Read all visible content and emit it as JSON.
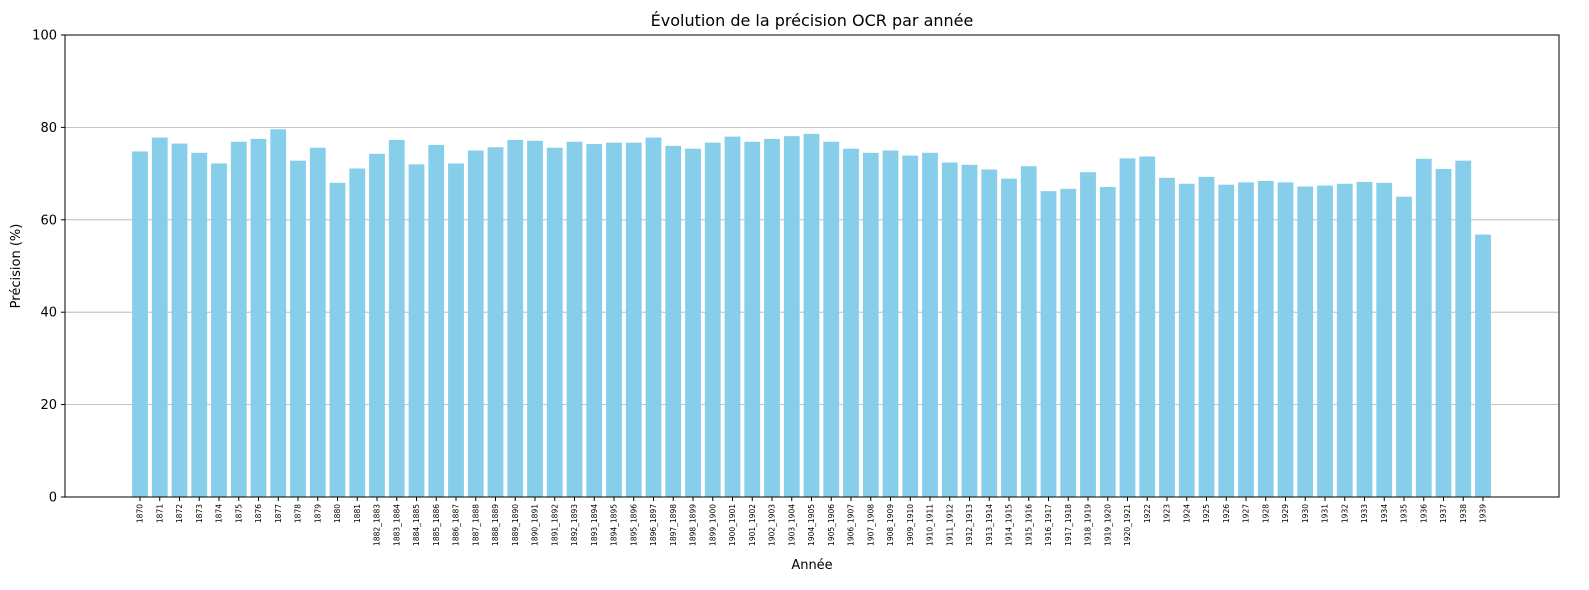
{
  "chart_data": {
    "type": "bar",
    "title": "Évolution de la précision OCR par année",
    "xlabel": "Année",
    "ylabel": "Précision (%)",
    "ylim": [
      0,
      100
    ],
    "yticks": [
      0,
      20,
      40,
      60,
      80,
      100
    ],
    "grid": "y",
    "bar_color": "#87CEEB",
    "grid_color": "#b0b0b0",
    "categories": [
      "1870",
      "1871",
      "1872",
      "1873",
      "1874",
      "1875",
      "1876",
      "1877",
      "1878",
      "1879",
      "1880",
      "1881",
      "1882_1883",
      "1883_1884",
      "1884_1885",
      "1885_1886",
      "1886_1887",
      "1887_1888",
      "1888_1889",
      "1889_1890",
      "1890_1891",
      "1891_1892",
      "1892_1893",
      "1893_1894",
      "1894_1895",
      "1895_1896",
      "1896_1897",
      "1897_1898",
      "1898_1899",
      "1899_1900",
      "1900_1901",
      "1901_1902",
      "1902_1903",
      "1903_1904",
      "1904_1905",
      "1905_1906",
      "1906_1907",
      "1907_1908",
      "1908_1909",
      "1909_1910",
      "1910_1911",
      "1911_1912",
      "1912_1913",
      "1913_1914",
      "1914_1915",
      "1915_1916",
      "1916_1917",
      "1917_1918",
      "1918_1919",
      "1919_1920",
      "1920_1921",
      "1922",
      "1923",
      "1924",
      "1925",
      "1926",
      "1927",
      "1928",
      "1929",
      "1930",
      "1931",
      "1932",
      "1933",
      "1934",
      "1935",
      "1936",
      "1937",
      "1938",
      "1939"
    ],
    "values": [
      74.8,
      77.8,
      76.5,
      74.5,
      72.2,
      76.9,
      77.5,
      79.6,
      72.8,
      75.6,
      68.0,
      71.1,
      74.3,
      77.3,
      72.0,
      76.2,
      72.2,
      75.0,
      75.7,
      77.3,
      77.1,
      75.6,
      76.9,
      76.4,
      76.7,
      76.7,
      77.8,
      76.0,
      75.4,
      76.7,
      78.0,
      76.9,
      77.5,
      78.1,
      78.6,
      76.9,
      75.4,
      74.5,
      75.0,
      73.9,
      74.5,
      72.4,
      71.9,
      70.9,
      68.9,
      71.6,
      66.2,
      66.7,
      70.3,
      67.1,
      73.3,
      73.7,
      69.1,
      67.8,
      69.3,
      67.6,
      68.1,
      68.4,
      68.1,
      67.2,
      67.4,
      67.8,
      68.2,
      68.0,
      65.0,
      73.2,
      71.0,
      72.8,
      56.8
    ]
  }
}
